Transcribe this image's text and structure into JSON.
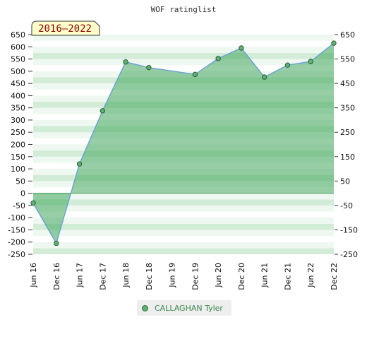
{
  "chart_data": {
    "type": "area",
    "title": "WOF ratinglist",
    "badge": "2016–2022",
    "x": [
      "Jun 16",
      "Dec 16",
      "Jun 17",
      "Dec 17",
      "Jun 18",
      "Dec 18",
      "Jun 19",
      "Dec 19",
      "Jun 20",
      "Dec 20",
      "Jun 21",
      "Dec 21",
      "Jun 22",
      "Dec 22"
    ],
    "series": [
      {
        "name": "CALLAGHAN Tyler",
        "values": [
          -40,
          -205,
          120,
          338,
          538,
          515,
          null,
          487,
          552,
          595,
          476,
          525,
          540,
          615
        ],
        "color": "#5db371"
      }
    ],
    "ylim": [
      -250,
      650
    ],
    "yticks_left": [
      "650",
      "600",
      "550",
      "500",
      "450",
      "400",
      "350",
      "300",
      "250",
      "200",
      "150",
      "100",
      "50",
      "0",
      "-50",
      "-100",
      "-150",
      "-200",
      "-250"
    ],
    "yticks_right": [
      "650",
      "550",
      "450",
      "350",
      "250",
      "150",
      "50",
      "-50",
      "-150",
      "-250"
    ],
    "legend_position": "bottom-center",
    "grid": true
  }
}
